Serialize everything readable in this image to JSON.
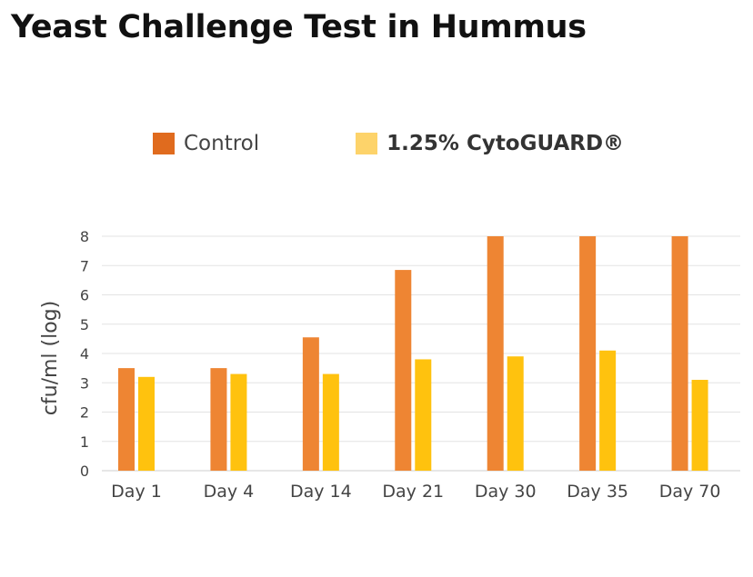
{
  "title": "Yeast Challenge Test in Hummus",
  "legend": {
    "items": [
      {
        "label": "Control",
        "color": "#E06B1E"
      },
      {
        "label": "1.25% CytoGUARD®",
        "color": "#FDD36A"
      }
    ]
  },
  "chart_data": {
    "type": "bar",
    "title": "Yeast Challenge Test in Hummus",
    "xlabel": "",
    "ylabel": "cfu/ml (log)",
    "ylim": [
      0,
      8
    ],
    "yticks": [
      0,
      1,
      2,
      3,
      4,
      5,
      6,
      7,
      8
    ],
    "grid": true,
    "legend_position": "top",
    "categories": [
      "Day 1",
      "Day 4",
      "Day 14",
      "Day 21",
      "Day 30",
      "Day 35",
      "Day 70"
    ],
    "series": [
      {
        "name": "Control",
        "color": "#EE8533",
        "values": [
          3.5,
          3.5,
          4.55,
          6.85,
          8,
          8,
          8
        ]
      },
      {
        "name": "1.25% CytoGUARD®",
        "color": "#FFC20E",
        "values": [
          3.2,
          3.3,
          3.3,
          3.8,
          3.9,
          4.1,
          3.1
        ]
      }
    ]
  }
}
